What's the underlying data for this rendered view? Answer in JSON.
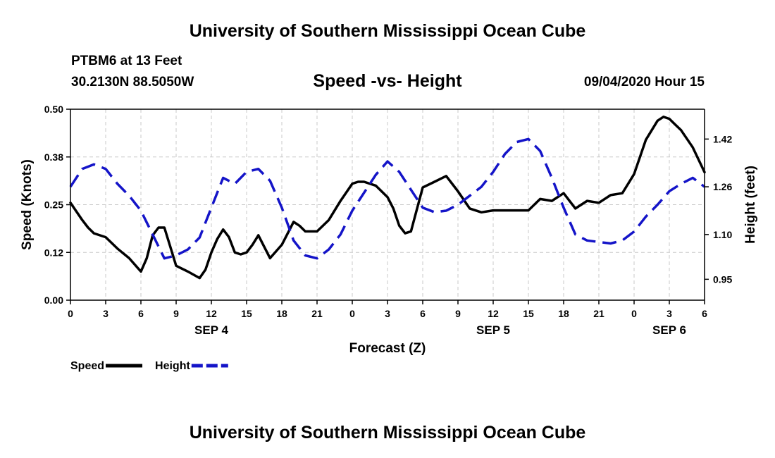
{
  "header": {
    "top_title": "University of Southern Mississippi Ocean Cube",
    "station_name": "PTBM6 at 13 Feet",
    "station_coords": "30.2130N 88.5050W",
    "date": "09/04/2020 Hour 15"
  },
  "footer": {
    "bottom_title": "University of Southern Mississippi Ocean Cube"
  },
  "colors": {
    "speed": "#000000",
    "height": "#1414c8",
    "grid": "#c8c8c8"
  },
  "chart_data": {
    "type": "line",
    "title": "Speed -vs- Height",
    "xlabel": "Forecast (Z)",
    "ylabel": "Speed (Knots)",
    "y2label": "Height (feet)",
    "x_range_hours": [
      0,
      54
    ],
    "ylim": [
      0,
      0.5
    ],
    "y2lim": [
      0.88,
      1.52
    ],
    "x_ticks": [
      {
        "h": 0,
        "label": "0"
      },
      {
        "h": 3,
        "label": "3"
      },
      {
        "h": 6,
        "label": "6"
      },
      {
        "h": 9,
        "label": "9"
      },
      {
        "h": 12,
        "label": "12"
      },
      {
        "h": 15,
        "label": "15"
      },
      {
        "h": 18,
        "label": "18"
      },
      {
        "h": 21,
        "label": "21"
      },
      {
        "h": 24,
        "label": "0"
      },
      {
        "h": 27,
        "label": "3"
      },
      {
        "h": 30,
        "label": "6"
      },
      {
        "h": 33,
        "label": "9"
      },
      {
        "h": 36,
        "label": "12"
      },
      {
        "h": 39,
        "label": "15"
      },
      {
        "h": 42,
        "label": "18"
      },
      {
        "h": 45,
        "label": "21"
      },
      {
        "h": 48,
        "label": "0"
      },
      {
        "h": 51,
        "label": "3"
      },
      {
        "h": 54,
        "label": "6"
      }
    ],
    "date_labels": [
      {
        "h": 12,
        "label": "SEP 4"
      },
      {
        "h": 36,
        "label": "SEP 5"
      },
      {
        "h": 51,
        "label": "SEP 6"
      }
    ],
    "y_ticks": [
      {
        "v": 0.0,
        "label": "0.00"
      },
      {
        "v": 0.125,
        "label": "0.12"
      },
      {
        "v": 0.25,
        "label": "0.25"
      },
      {
        "v": 0.375,
        "label": "0.38"
      },
      {
        "v": 0.5,
        "label": "0.50"
      }
    ],
    "y2_ticks": [
      {
        "v": 0.95,
        "label": "0.95"
      },
      {
        "v": 1.1,
        "label": "1.10"
      },
      {
        "v": 1.26,
        "label": "1.26"
      },
      {
        "v": 1.42,
        "label": "1.42"
      }
    ],
    "legend": [
      {
        "name": "Speed",
        "style": "solid"
      },
      {
        "name": "Height",
        "style": "dashed"
      }
    ],
    "series": [
      {
        "name": "Speed",
        "axis": "left",
        "x": [
          0,
          1,
          1.5,
          2,
          3,
          4,
          5,
          6,
          6.5,
          7,
          7.5,
          8,
          8.5,
          9,
          10,
          11,
          11.5,
          12,
          12.5,
          13,
          13.5,
          14,
          14.5,
          15,
          15.5,
          16,
          17,
          18,
          19,
          19.5,
          20,
          21,
          22,
          23,
          24,
          24.5,
          25,
          26,
          27,
          27.5,
          28,
          28.5,
          29,
          30,
          31,
          32,
          33,
          34,
          35,
          36,
          37,
          38,
          39,
          40,
          41,
          42,
          43,
          44,
          45,
          46,
          47,
          48,
          49,
          50,
          50.5,
          51,
          51.5,
          52,
          53,
          54
        ],
        "values": [
          0.255,
          0.21,
          0.19,
          0.175,
          0.165,
          0.135,
          0.11,
          0.075,
          0.11,
          0.17,
          0.19,
          0.19,
          0.14,
          0.09,
          0.075,
          0.058,
          0.08,
          0.125,
          0.16,
          0.185,
          0.165,
          0.125,
          0.12,
          0.125,
          0.145,
          0.17,
          0.11,
          0.145,
          0.205,
          0.195,
          0.18,
          0.18,
          0.21,
          0.26,
          0.305,
          0.31,
          0.31,
          0.3,
          0.27,
          0.24,
          0.195,
          0.175,
          0.18,
          0.295,
          0.31,
          0.325,
          0.285,
          0.24,
          0.23,
          0.235,
          0.235,
          0.235,
          0.235,
          0.265,
          0.26,
          0.28,
          0.24,
          0.26,
          0.255,
          0.275,
          0.28,
          0.33,
          0.42,
          0.47,
          0.48,
          0.475,
          0.46,
          0.445,
          0.4,
          0.335
        ]
      },
      {
        "name": "Height",
        "axis": "right",
        "x": [
          0,
          1,
          2,
          3,
          4,
          5,
          6,
          7,
          8,
          9,
          10,
          11,
          12,
          13,
          14,
          15,
          16,
          17,
          18,
          19,
          20,
          21,
          22,
          23,
          24,
          25,
          26,
          27,
          28,
          29,
          30,
          31,
          32,
          33,
          34,
          35,
          36,
          37,
          38,
          39,
          40,
          41,
          42,
          43,
          44,
          45,
          46,
          47,
          48,
          49,
          50,
          51,
          52,
          53,
          54
        ],
        "values": [
          1.26,
          1.32,
          1.335,
          1.32,
          1.27,
          1.23,
          1.18,
          1.1,
          1.02,
          1.03,
          1.05,
          1.09,
          1.19,
          1.29,
          1.27,
          1.31,
          1.32,
          1.28,
          1.19,
          1.08,
          1.03,
          1.02,
          1.05,
          1.1,
          1.18,
          1.24,
          1.3,
          1.345,
          1.31,
          1.25,
          1.19,
          1.175,
          1.18,
          1.2,
          1.23,
          1.26,
          1.31,
          1.37,
          1.41,
          1.42,
          1.38,
          1.29,
          1.19,
          1.1,
          1.08,
          1.075,
          1.07,
          1.08,
          1.11,
          1.16,
          1.2,
          1.245,
          1.27,
          1.29,
          1.26
        ]
      }
    ]
  }
}
